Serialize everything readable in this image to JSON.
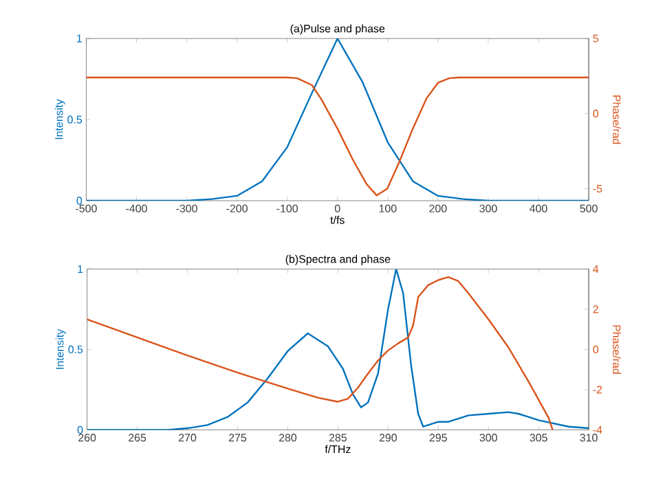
{
  "chart_data": [
    {
      "type": "line",
      "title": "(a)Pulse and phase",
      "xlabel": "t/fs",
      "ylabel": "Intensity",
      "y2label": "Phase/rad",
      "xlim": [
        -500,
        500
      ],
      "xticks": [
        -500,
        -400,
        -300,
        -200,
        -100,
        0,
        100,
        200,
        300,
        400,
        500
      ],
      "ylim": [
        0,
        1
      ],
      "yticks": [
        0,
        0.5,
        1
      ],
      "y2lim": [
        -5.8,
        5
      ],
      "y2ticks": [
        -5,
        0,
        5
      ],
      "series": [
        {
          "color": "#0072bd",
          "x": [
            -500,
            -300,
            -250,
            -200,
            -150,
            -100,
            -50,
            0,
            50,
            100,
            150,
            200,
            250,
            300,
            500
          ],
          "values": [
            0,
            0,
            0.01,
            0.03,
            0.12,
            0.33,
            0.67,
            1.0,
            0.73,
            0.36,
            0.12,
            0.03,
            0.01,
            0,
            0
          ]
        },
        {
          "color": "#d95319",
          "axis": "y2",
          "x": [
            -500,
            -100,
            -80,
            -51,
            -33,
            0,
            31,
            58,
            78,
            99,
            122,
            150,
            177,
            200,
            222,
            241,
            500
          ],
          "values": [
            2.4,
            2.4,
            2.35,
            1.9,
            1.0,
            -1.0,
            -3.1,
            -4.7,
            -5.45,
            -5.0,
            -3.3,
            -1.0,
            1.0,
            2.05,
            2.35,
            2.4,
            2.4
          ]
        }
      ]
    },
    {
      "type": "line",
      "title": "(b)Spectra and phase",
      "xlabel": "f/THz",
      "ylabel": "Intensity",
      "y2label": "Phase/rad",
      "xlim": [
        260,
        310
      ],
      "xticks": [
        260,
        265,
        270,
        275,
        280,
        285,
        290,
        295,
        300,
        305,
        310
      ],
      "ylim": [
        0,
        1
      ],
      "yticks": [
        0,
        0.5,
        1
      ],
      "y2lim": [
        -4,
        4
      ],
      "y2ticks": [
        -4,
        -2,
        0,
        2,
        4
      ],
      "series": [
        {
          "color": "#0072bd",
          "x": [
            260,
            268,
            270,
            272,
            274,
            276,
            278,
            280,
            282,
            284,
            285.5,
            286.5,
            287.3,
            288,
            289,
            290,
            290.8,
            291.5,
            292.3,
            293,
            293.5,
            294,
            295,
            296,
            297,
            298,
            300,
            302,
            303,
            305,
            308,
            310
          ],
          "values": [
            0,
            0,
            0.01,
            0.03,
            0.08,
            0.17,
            0.32,
            0.49,
            0.6,
            0.52,
            0.38,
            0.22,
            0.14,
            0.17,
            0.35,
            0.75,
            1.0,
            0.85,
            0.4,
            0.1,
            0.02,
            0.03,
            0.05,
            0.05,
            0.07,
            0.09,
            0.1,
            0.11,
            0.1,
            0.06,
            0.02,
            0.01
          ]
        },
        {
          "color": "#d95319",
          "axis": "y2",
          "x": [
            260,
            265,
            270,
            275,
            280,
            283,
            285,
            286,
            287,
            288,
            289,
            290,
            291,
            292,
            292.5,
            293,
            294,
            295,
            296,
            297,
            298,
            300,
            302,
            304,
            306,
            306.4
          ],
          "values": [
            1.5,
            0.6,
            -0.3,
            -1.15,
            -1.95,
            -2.4,
            -2.6,
            -2.45,
            -1.9,
            -1.2,
            -0.55,
            -0.05,
            0.3,
            0.6,
            1.2,
            2.6,
            3.2,
            3.45,
            3.6,
            3.4,
            2.8,
            1.5,
            0.1,
            -1.6,
            -3.4,
            -4
          ]
        }
      ]
    }
  ]
}
